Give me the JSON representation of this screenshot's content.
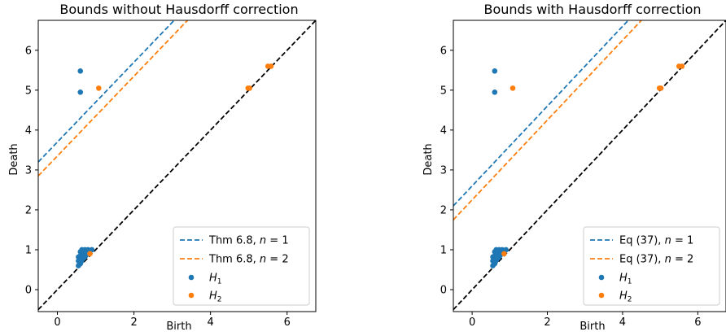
{
  "chart_data": [
    {
      "type": "scatter",
      "title": "Bounds without Hausdorff correction",
      "xlabel": "Birth",
      "ylabel": "Death",
      "xlim": [
        -0.5,
        6.75
      ],
      "ylim": [
        -0.55,
        6.75
      ],
      "xticks": [
        0,
        2,
        4,
        6
      ],
      "yticks": [
        0,
        1,
        2,
        3,
        4,
        5,
        6
      ],
      "xtick_labels": [
        "0",
        "2",
        "4",
        "6"
      ],
      "ytick_labels": [
        "0",
        "1",
        "2",
        "3",
        "4",
        "5",
        "6"
      ],
      "legend_position": "lower right",
      "diagonal": {
        "slope": 1,
        "intercept": 0,
        "color": "#000000",
        "style": "dashed"
      },
      "lines": [
        {
          "label_prefix": "Thm 6.8, ",
          "label_var": "n",
          "label_value": " = 1",
          "slope": 1,
          "intercept": 3.7,
          "color": "#1f77b4",
          "style": "dashed"
        },
        {
          "label_prefix": "Thm 6.8, ",
          "label_var": "n",
          "label_value": " = 2",
          "slope": 1,
          "intercept": 3.35,
          "color": "#ff7f0e",
          "style": "dashed"
        }
      ],
      "series": [
        {
          "label": "H",
          "subscript": "1",
          "color": "#1f77b4",
          "points": [
            [
              0.6,
              5.48
            ],
            [
              0.6,
              4.95
            ],
            [
              0.55,
              0.6
            ],
            [
              0.55,
              0.72
            ],
            [
              0.55,
              0.82
            ],
            [
              0.6,
              0.65
            ],
            [
              0.6,
              0.75
            ],
            [
              0.6,
              0.85
            ],
            [
              0.6,
              0.95
            ],
            [
              0.62,
              0.7
            ],
            [
              0.63,
              0.8
            ],
            [
              0.63,
              0.9
            ],
            [
              0.64,
              1.0
            ],
            [
              0.65,
              0.75
            ],
            [
              0.66,
              0.85
            ],
            [
              0.68,
              0.95
            ],
            [
              0.7,
              0.8
            ],
            [
              0.7,
              0.9
            ],
            [
              0.72,
              1.0
            ],
            [
              0.74,
              0.85
            ],
            [
              0.75,
              0.95
            ],
            [
              0.78,
              0.9
            ],
            [
              0.8,
              1.0
            ],
            [
              0.85,
              0.95
            ],
            [
              0.9,
              1.0
            ]
          ]
        },
        {
          "label": "H",
          "subscript": "2",
          "color": "#ff7f0e",
          "points": [
            [
              1.08,
              5.05
            ],
            [
              4.98,
              5.05
            ],
            [
              5.02,
              5.05
            ],
            [
              5.5,
              5.6
            ],
            [
              5.58,
              5.6
            ],
            [
              0.85,
              0.9
            ]
          ]
        }
      ]
    },
    {
      "type": "scatter",
      "title": "Bounds with Hausdorff correction",
      "xlabel": "Birth",
      "ylabel": "Death",
      "xlim": [
        -0.5,
        6.75
      ],
      "ylim": [
        -0.55,
        6.75
      ],
      "xticks": [
        0,
        2,
        4,
        6
      ],
      "yticks": [
        0,
        1,
        2,
        3,
        4,
        5,
        6
      ],
      "xtick_labels": [
        "0",
        "2",
        "4",
        "6"
      ],
      "ytick_labels": [
        "0",
        "1",
        "2",
        "3",
        "4",
        "5",
        "6"
      ],
      "legend_position": "lower right",
      "diagonal": {
        "slope": 1,
        "intercept": 0,
        "color": "#000000",
        "style": "dashed"
      },
      "lines": [
        {
          "label_prefix": "Eq (37), ",
          "label_var": "n",
          "label_value": " = 1",
          "slope": 1,
          "intercept": 2.6,
          "color": "#1f77b4",
          "style": "dashed"
        },
        {
          "label_prefix": "Eq (37), ",
          "label_var": "n",
          "label_value": " = 2",
          "slope": 1,
          "intercept": 2.25,
          "color": "#ff7f0e",
          "style": "dashed"
        }
      ],
      "series": [
        {
          "label": "H",
          "subscript": "1",
          "color": "#1f77b4",
          "points": [
            [
              0.6,
              5.48
            ],
            [
              0.6,
              4.95
            ],
            [
              0.55,
              0.6
            ],
            [
              0.55,
              0.72
            ],
            [
              0.55,
              0.82
            ],
            [
              0.6,
              0.65
            ],
            [
              0.6,
              0.75
            ],
            [
              0.6,
              0.85
            ],
            [
              0.6,
              0.95
            ],
            [
              0.62,
              0.7
            ],
            [
              0.63,
              0.8
            ],
            [
              0.63,
              0.9
            ],
            [
              0.64,
              1.0
            ],
            [
              0.65,
              0.75
            ],
            [
              0.66,
              0.85
            ],
            [
              0.68,
              0.95
            ],
            [
              0.7,
              0.8
            ],
            [
              0.7,
              0.9
            ],
            [
              0.72,
              1.0
            ],
            [
              0.74,
              0.85
            ],
            [
              0.75,
              0.95
            ],
            [
              0.78,
              0.9
            ],
            [
              0.8,
              1.0
            ],
            [
              0.85,
              0.95
            ],
            [
              0.9,
              1.0
            ]
          ]
        },
        {
          "label": "H",
          "subscript": "2",
          "color": "#ff7f0e",
          "points": [
            [
              1.08,
              5.05
            ],
            [
              4.98,
              5.05
            ],
            [
              5.02,
              5.05
            ],
            [
              5.5,
              5.6
            ],
            [
              5.58,
              5.6
            ],
            [
              0.85,
              0.9
            ]
          ]
        }
      ]
    }
  ]
}
